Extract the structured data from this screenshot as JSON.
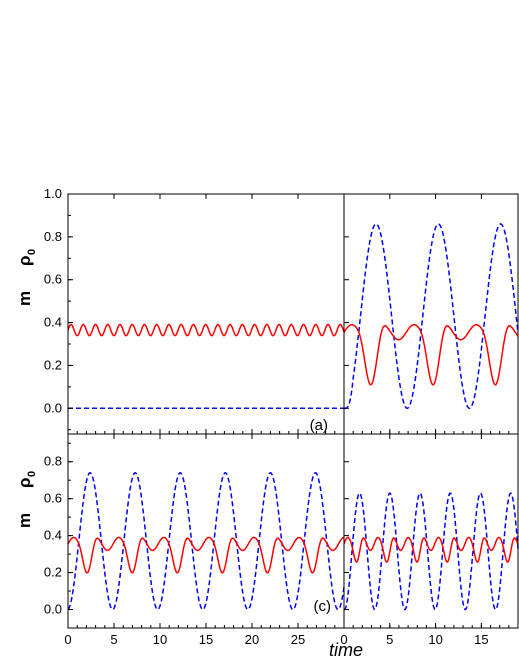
{
  "chart_data": {
    "type": "line",
    "xlabel": "time",
    "ylabel_m": "m",
    "ylabel_rho": "ρ",
    "ylabel_rho_sub": "0",
    "series_styles": [
      {
        "key": "m",
        "color": "#ff0000",
        "dash": "solid"
      },
      {
        "key": "rho0",
        "color": "#0000ff",
        "dash": "dashed"
      }
    ],
    "panels": [
      {
        "label": "(a)",
        "yticks": [
          "0.0",
          "0.2",
          "0.4",
          "0.6",
          "0.8",
          "1.0"
        ],
        "ylim": [
          -0.12,
          1.0
        ],
        "left": {
          "xlim": [
            0,
            30
          ],
          "m": {
            "mean": 0.365,
            "amp": 0.026,
            "period": 1.33
          },
          "rho0": {
            "constant": 0.0
          }
        },
        "right": {
          "xlim": [
            0,
            19
          ],
          "m": {
            "shape": "oscillation with dips",
            "max": 0.39,
            "min": 0.14,
            "period": 6.8
          },
          "rho0": {
            "min": 0.0,
            "max": 0.86,
            "period": 6.8,
            "first_peak_time": 3.5
          }
        }
      },
      {
        "label": "(c)",
        "yticks": [
          "0.0",
          "0.2",
          "0.4",
          "0.6",
          "0.8"
        ],
        "ylim": [
          -0.1,
          0.95
        ],
        "left": {
          "xlim": [
            0,
            30
          ],
          "m": {
            "shape": "oscillation with dips",
            "max": 0.39,
            "min": 0.23,
            "period": 4.9
          },
          "rho0": {
            "min": 0.0,
            "max": 0.74,
            "period": 4.9,
            "first_peak_time": 2.4
          }
        },
        "right": {
          "xlim": [
            0,
            19
          ],
          "m": {
            "shape": "oscillation with dips",
            "max": 0.39,
            "min": 0.29,
            "period": 3.3
          },
          "rho0": {
            "min": 0.0,
            "max": 0.63,
            "period": 3.3,
            "first_peak_time": 1.7
          }
        }
      }
    ],
    "xticks_left": [
      "0",
      "5",
      "10",
      "15",
      "20",
      "25"
    ],
    "xticks_right": [
      "0",
      "5",
      "10",
      "15"
    ]
  }
}
